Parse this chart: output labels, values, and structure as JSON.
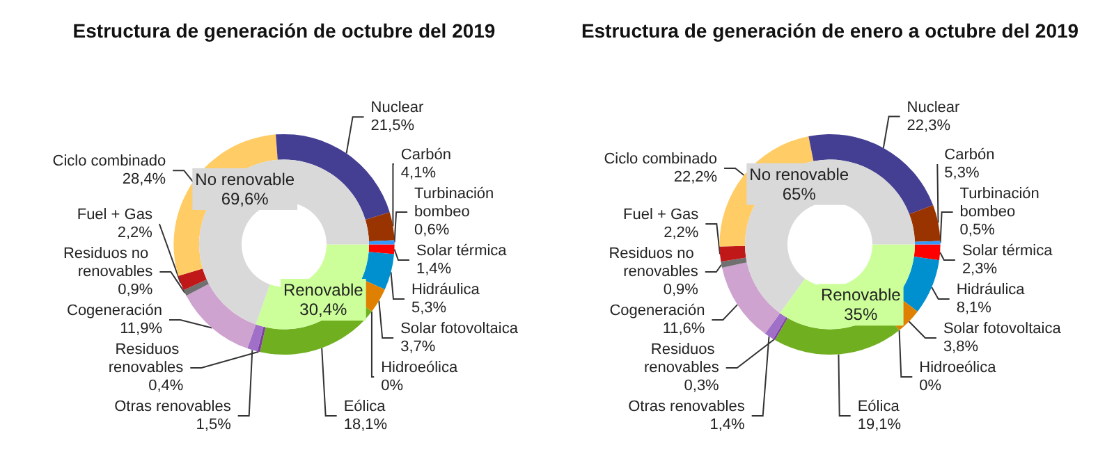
{
  "chart_data": [
    {
      "type": "donut",
      "title": "Estructura de generación de octubre del 2019",
      "categories": [
        "Solar térmica",
        "Hidráulica",
        "Solar fotovoltaica",
        "Hidroeólica",
        "Eólica",
        "Residuos renovables",
        "Otras renovables",
        "Cogeneración",
        "Residuos no renovables",
        "Fuel + Gas",
        "Ciclo combinado",
        "Nuclear",
        "Carbón",
        "Turbinación bombeo"
      ],
      "values": [
        1.4,
        5.3,
        3.7,
        0,
        18.1,
        0.4,
        1.5,
        11.9,
        0.9,
        2.2,
        28.4,
        21.5,
        4.1,
        0.6
      ],
      "value_labels": [
        "1,4%",
        "5,3%",
        "3,7%",
        "0%",
        "18,1%",
        "0,4%",
        "1,5%",
        "11,9%",
        "0,9%",
        "2,2%",
        "28,4%",
        "21,5%",
        "4,1%",
        "0,6%"
      ],
      "colors": [
        "#ff0000",
        "#0090d0",
        "#e08000",
        "#2e7d32",
        "#70b020",
        "#8040a0",
        "#a070c8",
        "#cfa3cf",
        "#707070",
        "#c01818",
        "#ffcc66",
        "#443f93",
        "#993300",
        "#3399ff"
      ]
    },
    {
      "type": "donut",
      "categories": [
        "Renovable",
        "No renovable"
      ],
      "values": [
        30.4,
        69.6
      ],
      "value_labels": [
        "30,4%",
        "69,6%"
      ],
      "colors": [
        "#ccff99",
        "#d9d9d9"
      ]
    },
    {
      "type": "donut",
      "title": "Estructura de generación de enero a octubre del 2019",
      "categories": [
        "Solar térmica",
        "Hidráulica",
        "Solar fotovoltaica",
        "Hidroeólica",
        "Eólica",
        "Residuos renovables",
        "Otras renovables",
        "Cogeneración",
        "Residuos no renovables",
        "Fuel + Gas",
        "Ciclo combinado",
        "Nuclear",
        "Carbón",
        "Turbinación bombeo"
      ],
      "values": [
        2.3,
        8.1,
        3.8,
        0,
        19.1,
        0.3,
        1.4,
        11.6,
        0.9,
        2.2,
        22.2,
        22.3,
        5.3,
        0.5
      ],
      "value_labels": [
        "2,3%",
        "8,1%",
        "3,8%",
        "0%",
        "19,1%",
        "0,3%",
        "1,4%",
        "11,6%",
        "0,9%",
        "2,2%",
        "22,2%",
        "22,3%",
        "5,3%",
        "0,5%"
      ],
      "colors": [
        "#ff0000",
        "#0090d0",
        "#e08000",
        "#2e7d32",
        "#70b020",
        "#8040a0",
        "#a070c8",
        "#cfa3cf",
        "#707070",
        "#c01818",
        "#ffcc66",
        "#443f93",
        "#993300",
        "#3399ff"
      ]
    },
    {
      "type": "donut",
      "categories": [
        "Renovable",
        "No renovable"
      ],
      "values": [
        35,
        65
      ],
      "value_labels": [
        "35%",
        "65%"
      ],
      "colors": [
        "#ccff99",
        "#d9d9d9"
      ]
    }
  ]
}
